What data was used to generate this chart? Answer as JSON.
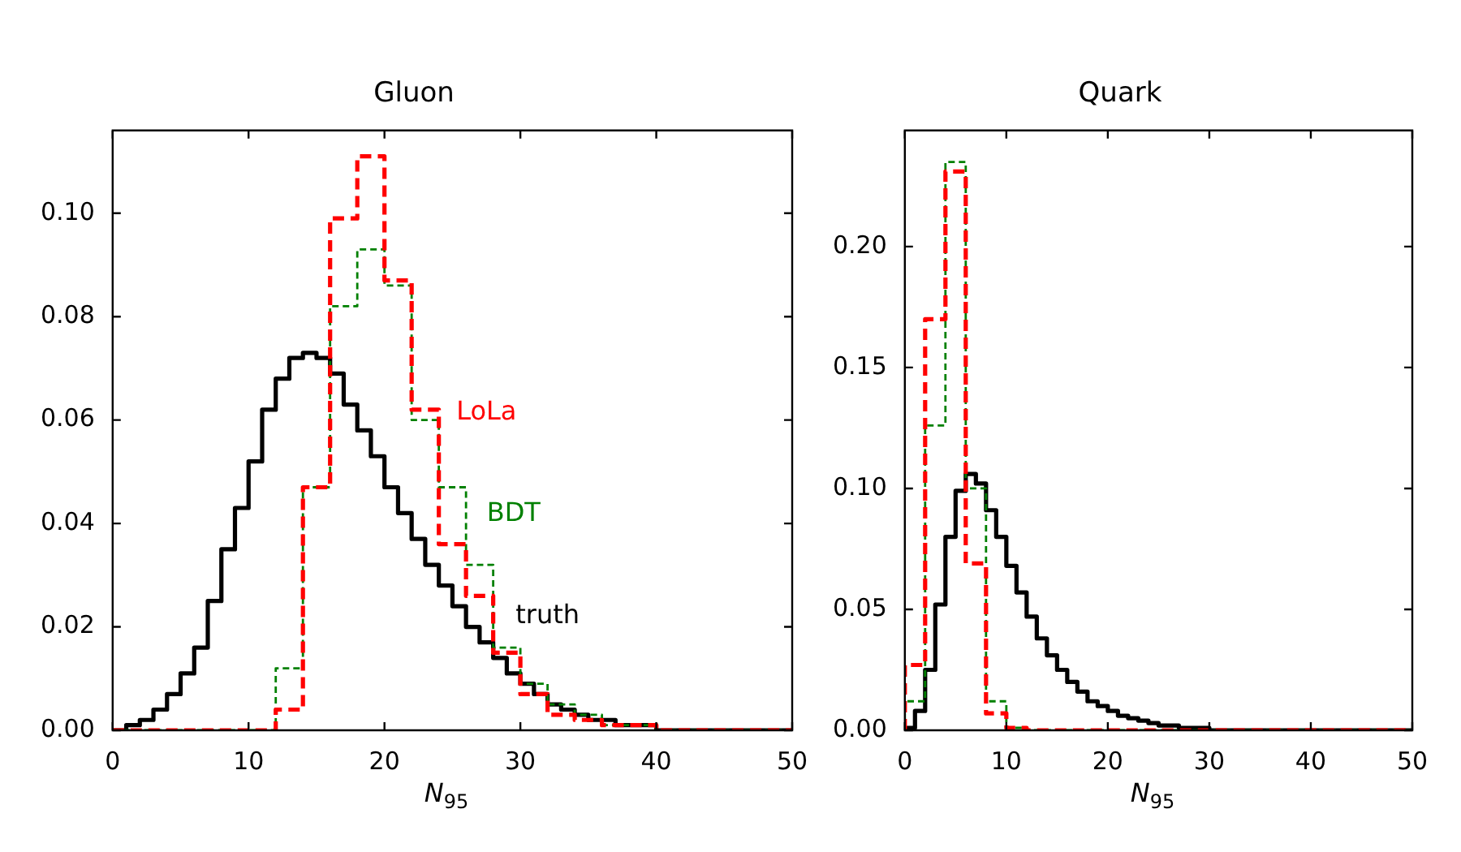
{
  "chart_data": [
    {
      "type": "histogram",
      "title": "Gluon",
      "xlabel": "N$_{95}$",
      "bins": [
        0,
        1,
        2,
        3,
        4,
        5,
        6,
        7,
        8,
        9,
        10,
        11,
        12,
        13,
        14,
        15,
        16,
        17,
        18,
        19,
        20,
        21,
        22,
        23,
        24,
        25,
        26,
        27,
        28,
        29,
        30,
        31,
        32,
        33,
        34,
        35,
        36,
        37,
        38,
        39,
        40,
        41,
        42,
        43,
        44,
        45,
        46,
        47,
        48,
        49,
        50
      ],
      "xlim": [
        0,
        50
      ],
      "xticks": [
        0,
        10,
        20,
        30,
        40,
        50
      ],
      "ylim": [
        0,
        0.116
      ],
      "yticks": [
        {
          "value": 0,
          "label": "0.00"
        },
        {
          "value": 0.02,
          "label": "0.02"
        },
        {
          "value": 0.04,
          "label": "0.04"
        },
        {
          "value": 0.06,
          "label": "0.06"
        },
        {
          "value": 0.08,
          "label": "0.08"
        },
        {
          "value": 0.1,
          "label": "0.10"
        }
      ],
      "series": [
        {
          "name": "LoLa",
          "color": "#ff0000",
          "line_style": "dashed",
          "values": [
            0,
            0,
            0,
            0,
            0,
            0,
            0,
            0,
            0,
            0,
            0,
            0,
            0.004,
            0.004,
            0.047,
            0.047,
            0.099,
            0.099,
            0.111,
            0.111,
            0.087,
            0.087,
            0.062,
            0.062,
            0.036,
            0.036,
            0.026,
            0.026,
            0.015,
            0.015,
            0.007,
            0.007,
            0.003,
            0.003,
            0.002,
            0.002,
            0.001,
            0.001,
            0.001,
            0.001,
            0,
            0,
            0,
            0,
            0,
            0,
            0,
            0,
            0,
            0
          ]
        },
        {
          "name": "BDT",
          "color": "#008000",
          "line_style": "dashed",
          "values": [
            0,
            0,
            0,
            0,
            0,
            0,
            0,
            0,
            0,
            0,
            0,
            0,
            0.012,
            0.012,
            0.047,
            0.047,
            0.082,
            0.082,
            0.093,
            0.093,
            0.086,
            0.086,
            0.06,
            0.06,
            0.047,
            0.047,
            0.032,
            0.032,
            0.016,
            0.016,
            0.009,
            0.009,
            0.005,
            0.005,
            0.003,
            0.003,
            0.001,
            0.001,
            0.001,
            0.001,
            0,
            0,
            0,
            0,
            0,
            0,
            0,
            0,
            0,
            0
          ]
        },
        {
          "name": "truth",
          "color": "#000000",
          "line_style": "solid",
          "values": [
            0,
            0.001,
            0.002,
            0.004,
            0.007,
            0.011,
            0.016,
            0.025,
            0.035,
            0.043,
            0.052,
            0.062,
            0.068,
            0.072,
            0.073,
            0.072,
            0.069,
            0.063,
            0.058,
            0.053,
            0.047,
            0.042,
            0.037,
            0.032,
            0.028,
            0.024,
            0.02,
            0.017,
            0.014,
            0.011,
            0.009,
            0.007,
            0.005,
            0.004,
            0.003,
            0.002,
            0.002,
            0.001,
            0.001,
            0.001,
            0,
            0,
            0,
            0,
            0,
            0,
            0,
            0,
            0,
            0
          ]
        }
      ]
    },
    {
      "type": "histogram",
      "title": "Quark",
      "xlabel": "N$_{95}$",
      "bins": [
        0,
        1,
        2,
        3,
        4,
        5,
        6,
        7,
        8,
        9,
        10,
        11,
        12,
        13,
        14,
        15,
        16,
        17,
        18,
        19,
        20,
        21,
        22,
        23,
        24,
        25,
        26,
        27,
        28,
        29,
        30,
        31,
        32,
        33,
        34,
        35,
        36,
        37,
        38,
        39,
        40,
        41,
        42,
        43,
        44,
        45,
        46,
        47,
        48,
        49,
        50
      ],
      "xlim": [
        0,
        50
      ],
      "xticks": [
        0,
        10,
        20,
        30,
        40,
        50
      ],
      "ylim": [
        0,
        0.248
      ],
      "yticks": [
        {
          "value": 0,
          "label": "0.00"
        },
        {
          "value": 0.05,
          "label": "0.05"
        },
        {
          "value": 0.1,
          "label": "0.10"
        },
        {
          "value": 0.15,
          "label": "0.15"
        },
        {
          "value": 0.2,
          "label": "0.20"
        }
      ],
      "series": [
        {
          "color": "#ff0000",
          "line_style": "dashed",
          "values": [
            0.027,
            0.027,
            0.17,
            0.17,
            0.231,
            0.231,
            0.069,
            0.069,
            0.007,
            0.007,
            0.001,
            0.001,
            0,
            0,
            0,
            0,
            0,
            0,
            0,
            0,
            0,
            0,
            0,
            0,
            0,
            0,
            0,
            0,
            0,
            0,
            0,
            0,
            0,
            0,
            0,
            0,
            0,
            0,
            0,
            0,
            0,
            0,
            0,
            0,
            0,
            0,
            0,
            0,
            0,
            0
          ]
        },
        {
          "color": "#008000",
          "line_style": "dashed",
          "values": [
            0.012,
            0.012,
            0.126,
            0.126,
            0.235,
            0.235,
            0.1,
            0.1,
            0.012,
            0.012,
            0.001,
            0.001,
            0,
            0,
            0,
            0,
            0,
            0,
            0,
            0,
            0,
            0,
            0,
            0,
            0,
            0,
            0,
            0,
            0,
            0,
            0,
            0,
            0,
            0,
            0,
            0,
            0,
            0,
            0,
            0,
            0,
            0,
            0,
            0,
            0,
            0,
            0,
            0,
            0,
            0
          ]
        },
        {
          "color": "#000000",
          "line_style": "solid",
          "values": [
            0.001,
            0.008,
            0.025,
            0.052,
            0.08,
            0.099,
            0.106,
            0.102,
            0.091,
            0.08,
            0.068,
            0.057,
            0.047,
            0.038,
            0.031,
            0.025,
            0.02,
            0.016,
            0.012,
            0.01,
            0.008,
            0.006,
            0.005,
            0.004,
            0.003,
            0.002,
            0.002,
            0.001,
            0.001,
            0.001,
            0,
            0,
            0,
            0,
            0,
            0,
            0,
            0,
            0,
            0,
            0,
            0,
            0,
            0,
            0,
            0,
            0,
            0,
            0,
            0
          ]
        }
      ]
    }
  ]
}
